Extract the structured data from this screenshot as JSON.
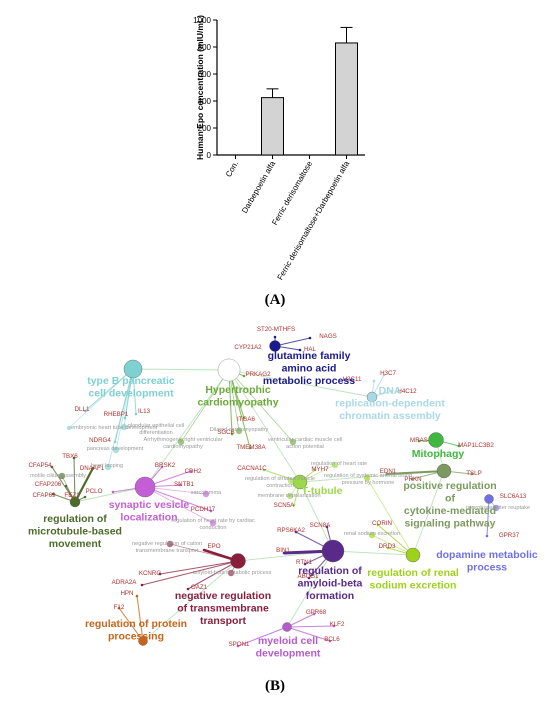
{
  "panel_a_label": "(A)",
  "panel_b_label": "(B)",
  "chart_data": [
    {
      "type": "bar",
      "ylabel": "Human Epo concentration (mIU/mL)",
      "ylim": [
        0,
        1000
      ],
      "yticks": [
        "0",
        "200",
        "400",
        "600",
        "800",
        "1000"
      ],
      "categories": [
        "Con.",
        "Darbepoetin alfa",
        "Ferric derisomaltose",
        "Ferric derisomaltose+Darbepoetin alfa"
      ],
      "values": [
        0,
        425,
        0,
        830
      ],
      "errors": [
        0,
        65,
        0,
        115
      ],
      "bar_color": "#d3d3d3"
    }
  ],
  "network": {
    "clusters": [
      {
        "id": "glutamine",
        "lines": [
          "glutamine family",
          "amino acid",
          "metabolic process"
        ],
        "color": "#1a1a8c"
      },
      {
        "id": "bpancreatic",
        "lines": [
          "type B pancreatic",
          "cell development"
        ],
        "color": "#7fd0d0"
      },
      {
        "id": "hypertrophic",
        "lines": [
          "Hypertrophic",
          "cardiomyopathy"
        ],
        "color": "#6aaa3a"
      },
      {
        "id": "dna",
        "lines": [
          "DNA",
          "replication-dependent",
          "chromatin assembly"
        ],
        "color": "#a9d9e6"
      },
      {
        "id": "mitophagy",
        "lines": [
          "Mitophagy"
        ],
        "color": "#3fb83f"
      },
      {
        "id": "cytokine",
        "lines": [
          "positive regulation",
          "of",
          "cytokine-mediated",
          "signaling pathway"
        ],
        "color": "#7c9a5f"
      },
      {
        "id": "synaptic",
        "lines": [
          "synaptic vesicle",
          "localization"
        ],
        "color": "#c45ed6"
      },
      {
        "id": "ttubule",
        "lines": [
          "T-tubule"
        ],
        "color": "#9cd84a"
      },
      {
        "id": "microtubule",
        "lines": [
          "regulation of",
          "microtubule-based",
          "movement"
        ],
        "color": "#4d6b2a"
      },
      {
        "id": "dopamine",
        "lines": [
          "dopamine metabolic",
          "process"
        ],
        "color": "#6f6fe6"
      },
      {
        "id": "renal",
        "lines": [
          "regulation of renal",
          "sodium excretion"
        ],
        "color": "#9ed21a"
      },
      {
        "id": "amyloid",
        "lines": [
          "regulation of",
          "amyloid-beta",
          "formation"
        ],
        "color": "#5a2a8a"
      },
      {
        "id": "transmembrane",
        "lines": [
          "negative regulation",
          "of transmembrane",
          "transport"
        ],
        "color": "#8a1f3c"
      },
      {
        "id": "protein",
        "lines": [
          "regulation of protein",
          "processing"
        ],
        "color": "#c8641a"
      },
      {
        "id": "myeloid",
        "lines": [
          "myeloid cell",
          "development"
        ],
        "color": "#b65ad0"
      }
    ],
    "genes": [
      "ST20-MTHFS",
      "NAGS",
      "CYP21A2",
      "HAL",
      "H3C7",
      "H3C11",
      "H4C12",
      "PRKAG2",
      "DLL1",
      "RHEBP1",
      "IL13",
      "NDRG4",
      "ITGA6",
      "SGCB",
      "TMEM38A",
      "TBX6",
      "DNAAF1",
      "CFAP54",
      "CFAP206",
      "CFAP69",
      "FEZ1",
      "BRSK2",
      "CDH2",
      "SNTB1",
      "PCLO",
      "PCDH17",
      "CACNA1C",
      "MYH7",
      "SCN5A",
      "MRAS",
      "MAP1LC3B2",
      "EDN1",
      "TSLP",
      "PRKN",
      "SLC6A13",
      "GPR37",
      "CORIN",
      "DRD3",
      "SCN8A",
      "RPS6KA2",
      "BIN1",
      "RTN1",
      "ABCG1",
      "EPO",
      "KCNRG",
      "ADRA2A",
      "OAZ1",
      "HPN",
      "F12",
      "GPR68",
      "KLF2",
      "BCL6",
      "SPON1"
    ],
    "terms": [
      "embryonic heart tube development",
      "glandular epithelial cell",
      "differentiation",
      "pancreas development",
      "Arrhythmogenic right ventricular",
      "cardiomyopathy",
      "Dilated cardiomyopathy",
      "ventricular cardiac muscle cell",
      "action potential",
      "regulation of heart rate",
      "regulation of striated muscle",
      "contraction",
      "membrane depolarization",
      "sarcolemma",
      "regulation of heart rate by cardiac",
      "conduction",
      "heart looping",
      "motile cilium assembly",
      "regulation of systemic arterial blood",
      "pressure by hormone",
      "neurotransmitter reuptake",
      "renal sodium excretion",
      "negative regulation of cation",
      "transmembrane transport",
      "amyloid-beta metabolic process"
    ]
  }
}
